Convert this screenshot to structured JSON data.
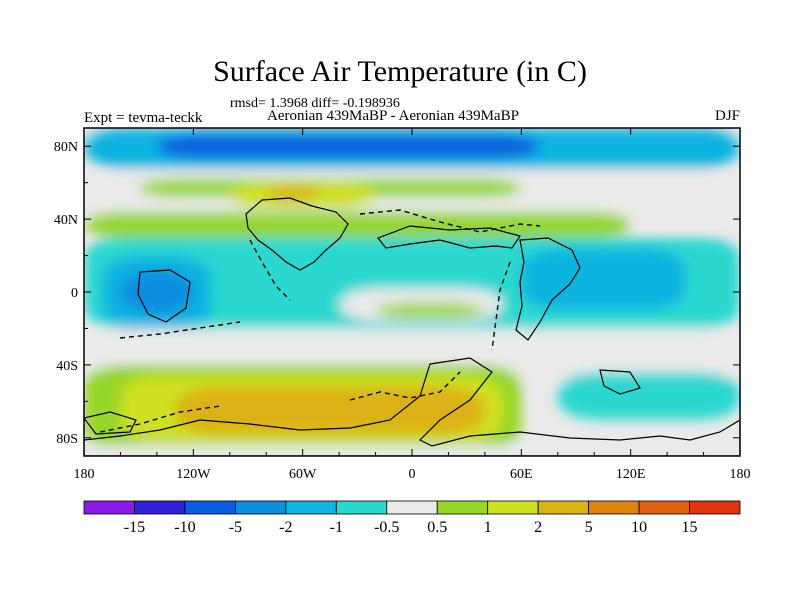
{
  "title": "Surface Air Temperature (in C)",
  "stats": "rmsd= 1.3968 diff= -0.198936",
  "experiment": "Expt = tevma-teckk",
  "period": "Aeronian 439MaBP - Aeronian 439MaBP",
  "season": "DJF",
  "map": {
    "lon_range": [
      -180,
      180
    ],
    "lat_range": [
      -90,
      90
    ],
    "lon_ticks": [
      {
        "value": -180,
        "label": "180"
      },
      {
        "value": -120,
        "label": "120W"
      },
      {
        "value": -60,
        "label": "60W"
      },
      {
        "value": 0,
        "label": "0"
      },
      {
        "value": 60,
        "label": "60E"
      },
      {
        "value": 120,
        "label": "120E"
      },
      {
        "value": 180,
        "label": "180"
      }
    ],
    "lat_ticks": [
      {
        "value": 80,
        "label": "80N"
      },
      {
        "value": 40,
        "label": "40N"
      },
      {
        "value": 0,
        "label": "0"
      },
      {
        "value": -40,
        "label": "40S"
      },
      {
        "value": -80,
        "label": "80S"
      }
    ],
    "regions": [
      {
        "name": "arctic-cold-band",
        "lon": [
          -180,
          180
        ],
        "lat": [
          68,
          90
        ],
        "color": "#11b4e0"
      },
      {
        "name": "arctic-core",
        "lon": [
          -140,
          70
        ],
        "lat": [
          74,
          86
        ],
        "color": "#0a5de0"
      },
      {
        "name": "north-mid-band",
        "lon": [
          -180,
          180
        ],
        "lat": [
          35,
          66
        ],
        "color": "#eaeaea"
      },
      {
        "name": "north-warm-streak",
        "lon": [
          -150,
          60
        ],
        "lat": [
          52,
          62
        ],
        "color": "#97d626"
      },
      {
        "name": "north-atlantic-warm",
        "lon": [
          -100,
          -20
        ],
        "lat": [
          46,
          60
        ],
        "color": "#cfe020"
      },
      {
        "name": "north-atlantic-core",
        "lon": [
          -80,
          -50
        ],
        "lat": [
          50,
          58
        ],
        "color": "#dcb315"
      },
      {
        "name": "north-subtropic-green",
        "lon": [
          -180,
          120
        ],
        "lat": [
          30,
          44
        ],
        "color": "#97d626"
      },
      {
        "name": "tropical-band",
        "lon": [
          -180,
          180
        ],
        "lat": [
          -20,
          30
        ],
        "color": "#2ad8d0"
      },
      {
        "name": "tropical-west",
        "lon": [
          -170,
          -110
        ],
        "lat": [
          -20,
          20
        ],
        "color": "#11b4e0"
      },
      {
        "name": "tropical-west-core",
        "lon": [
          -160,
          -120
        ],
        "lat": [
          -12,
          12
        ],
        "color": "#0f8ee0"
      },
      {
        "name": "equatorial-gap",
        "lon": [
          -40,
          50
        ],
        "lat": [
          -16,
          2
        ],
        "color": "#eaeaea"
      },
      {
        "name": "equatorial-warm",
        "lon": [
          -20,
          40
        ],
        "lat": [
          -14,
          -6
        ],
        "color": "#97d626"
      },
      {
        "name": "east-tropic-cool",
        "lon": [
          60,
          150
        ],
        "lat": [
          -10,
          24
        ],
        "color": "#11b4e0"
      },
      {
        "name": "south-mid-band",
        "lon": [
          -180,
          180
        ],
        "lat": [
          -50,
          -20
        ],
        "color": "#eaeaea"
      },
      {
        "name": "south-warm-band",
        "lon": [
          -180,
          60
        ],
        "lat": [
          -86,
          -40
        ],
        "color": "#97d626"
      },
      {
        "name": "south-warm-inner",
        "lon": [
          -160,
          50
        ],
        "lat": [
          -82,
          -46
        ],
        "color": "#cfe020"
      },
      {
        "name": "south-warm-core",
        "lon": [
          -130,
          40
        ],
        "lat": [
          -78,
          -52
        ],
        "color": "#dcb315"
      },
      {
        "name": "south-east-cool",
        "lon": [
          80,
          180
        ],
        "lat": [
          -70,
          -44
        ],
        "color": "#2ad8d0"
      },
      {
        "name": "south-pole-band",
        "lon": [
          -180,
          180
        ],
        "lat": [
          -90,
          -84
        ],
        "color": "#eaeaea"
      }
    ]
  },
  "colorbar": {
    "colors": [
      "#8a1ae8",
      "#3020d8",
      "#0a5de0",
      "#0f8ee0",
      "#11b4e0",
      "#2ad8d0",
      "#eaeaea",
      "#97d626",
      "#cfe020",
      "#dcb315",
      "#e0820e",
      "#e06010",
      "#e03412"
    ],
    "labels": [
      "-15",
      "-10",
      "-5",
      "-2",
      "-1",
      "-0.5",
      "0.5",
      "1",
      "2",
      "5",
      "10",
      "15"
    ]
  }
}
